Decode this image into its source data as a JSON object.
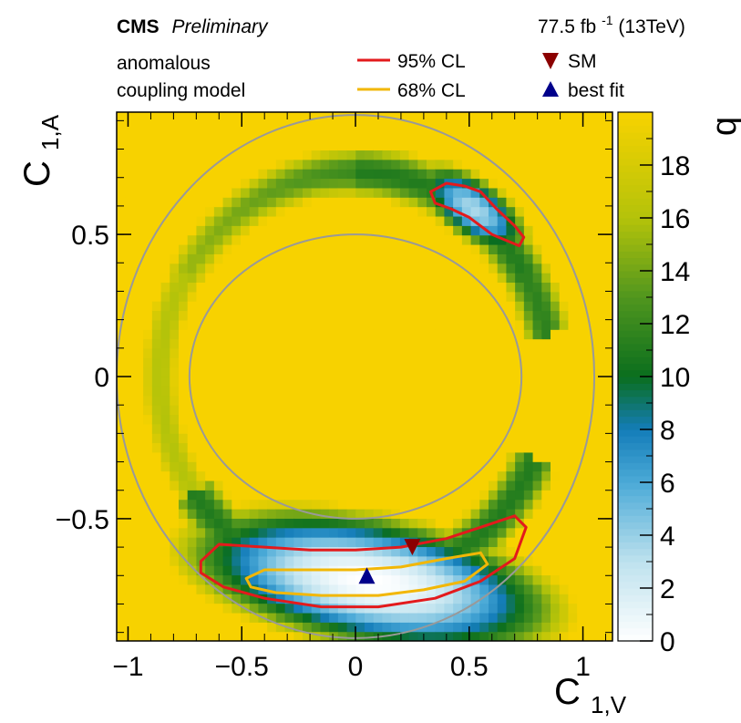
{
  "header": {
    "experiment": "CMS",
    "status": "Preliminary",
    "lumi_value": "77.5 fb",
    "lumi_exp": "-1",
    "energy": " (13TeV)",
    "model_line1": "anomalous",
    "model_line2": "coupling model"
  },
  "legend": {
    "cl95": "95% CL",
    "cl68": "68% CL",
    "sm": "SM",
    "best_fit": "best fit"
  },
  "colors": {
    "background_max": "#f7d200",
    "cl95_line": "#e31a1c",
    "cl68_line": "#f2b705",
    "sm_marker": "#8b0000",
    "best_fit_marker": "#00008b",
    "guide_circle": "#999999"
  },
  "chart_data": {
    "type": "heatmap",
    "title": "",
    "xlabel_main": "C",
    "xlabel_sub": "1,V",
    "ylabel_main": "C",
    "ylabel_sub": "1,A",
    "zlabel": "q",
    "xlim": [
      -1.05,
      1.13
    ],
    "ylim": [
      -0.93,
      0.93
    ],
    "zlim": [
      0,
      20
    ],
    "x_ticks": [
      -1,
      -0.5,
      0,
      0.5,
      1
    ],
    "x_tick_labels": [
      "−1",
      "−0.5",
      "0",
      "0.5",
      "1"
    ],
    "y_ticks": [
      -0.5,
      0,
      0.5
    ],
    "y_tick_labels": [
      "−0.5",
      "0",
      "0.5"
    ],
    "z_ticks": [
      0,
      2,
      4,
      6,
      8,
      10,
      12,
      14,
      16,
      18
    ],
    "z_tick_labels": [
      "0",
      "2",
      "4",
      "6",
      "8",
      "10",
      "12",
      "14",
      "16",
      "18"
    ],
    "guide_circles": [
      {
        "center": [
          0,
          0
        ],
        "rx": 0.73,
        "ry": 0.5
      },
      {
        "center": [
          0,
          0
        ],
        "rx": 1.05,
        "ry": 0.92
      }
    ],
    "likelihood_valleys": [
      {
        "region": "lower band",
        "center": [
          0.07,
          -0.72
        ],
        "rx": 0.68,
        "ry": 0.19,
        "tilt_deg": -8,
        "min_q": 0
      },
      {
        "region": "upper band",
        "center": [
          0.52,
          0.59
        ],
        "rx": 0.24,
        "ry": 0.1,
        "tilt_deg": -28,
        "min_q": 3.5
      }
    ],
    "contours": [
      {
        "name": "95% CL",
        "points": [
          [
            -0.68,
            -0.65
          ],
          [
            -0.6,
            -0.59
          ],
          [
            -0.4,
            -0.6
          ],
          [
            -0.2,
            -0.61
          ],
          [
            0,
            -0.61
          ],
          [
            0.2,
            -0.6
          ],
          [
            0.4,
            -0.57
          ],
          [
            0.55,
            -0.53
          ],
          [
            0.7,
            -0.49
          ],
          [
            0.75,
            -0.53
          ],
          [
            0.7,
            -0.64
          ],
          [
            0.55,
            -0.72
          ],
          [
            0.35,
            -0.78
          ],
          [
            0.1,
            -0.81
          ],
          [
            -0.15,
            -0.81
          ],
          [
            -0.4,
            -0.78
          ],
          [
            -0.58,
            -0.74
          ],
          [
            -0.68,
            -0.69
          ]
        ]
      },
      {
        "name": "68% CL",
        "points": [
          [
            -0.48,
            -0.71
          ],
          [
            -0.4,
            -0.68
          ],
          [
            -0.2,
            -0.68
          ],
          [
            0,
            -0.68
          ],
          [
            0.2,
            -0.67
          ],
          [
            0.4,
            -0.64
          ],
          [
            0.55,
            -0.62
          ],
          [
            0.58,
            -0.66
          ],
          [
            0.48,
            -0.72
          ],
          [
            0.3,
            -0.75
          ],
          [
            0.1,
            -0.77
          ],
          [
            -0.15,
            -0.77
          ],
          [
            -0.35,
            -0.76
          ],
          [
            -0.46,
            -0.74
          ]
        ]
      },
      {
        "name": "95% CL",
        "points": [
          [
            0.33,
            0.65
          ],
          [
            0.4,
            0.68
          ],
          [
            0.48,
            0.67
          ],
          [
            0.55,
            0.65
          ],
          [
            0.62,
            0.59
          ],
          [
            0.7,
            0.53
          ],
          [
            0.74,
            0.49
          ],
          [
            0.72,
            0.46
          ],
          [
            0.6,
            0.5
          ],
          [
            0.5,
            0.56
          ],
          [
            0.42,
            0.59
          ],
          [
            0.35,
            0.61
          ]
        ]
      }
    ],
    "markers": [
      {
        "name": "SM",
        "x": 0.25,
        "y": -0.6,
        "shape": "triangle-down"
      },
      {
        "name": "best fit",
        "x": 0.05,
        "y": -0.7,
        "shape": "triangle-up"
      }
    ]
  }
}
